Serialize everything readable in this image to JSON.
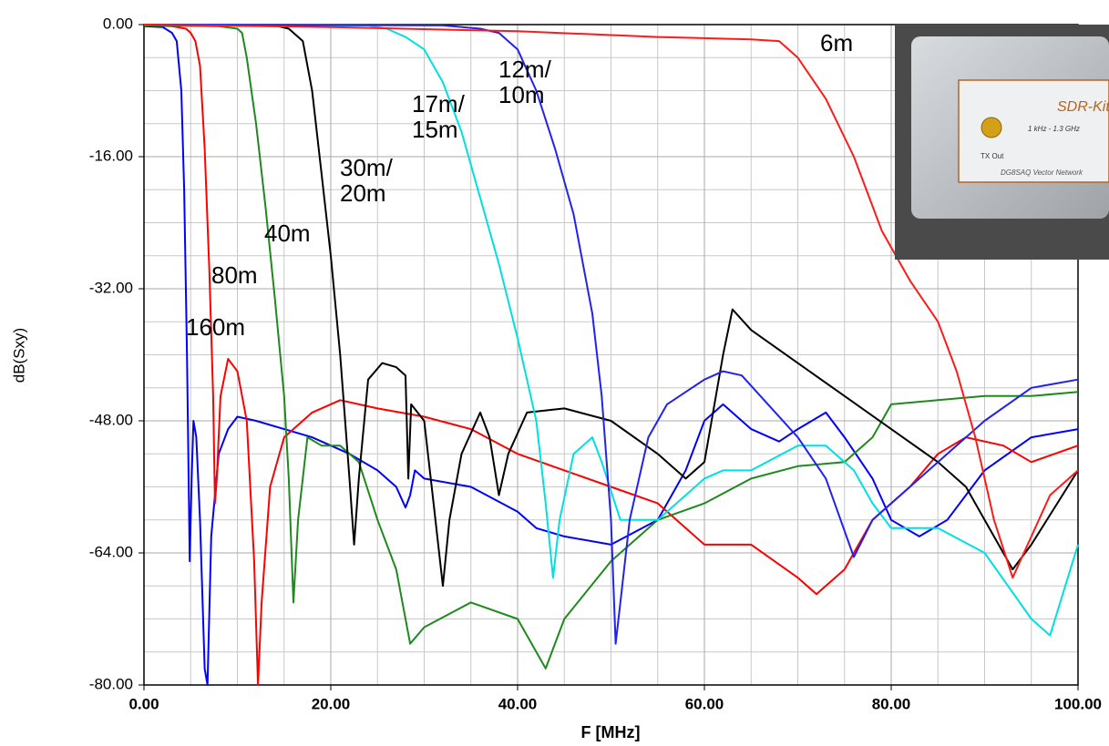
{
  "chart_data": {
    "type": "line",
    "xlabel": "F [MHz]",
    "ylabel": "dB(Sxy)",
    "xlim": [
      0,
      100
    ],
    "ylim": [
      -80,
      0
    ],
    "xticks": [
      {
        "value": 0,
        "label": "0.00"
      },
      {
        "value": 20,
        "label": "20.00"
      },
      {
        "value": 40,
        "label": "40.00"
      },
      {
        "value": 60,
        "label": "60.00"
      },
      {
        "value": 80,
        "label": "80.00"
      },
      {
        "value": 100,
        "label": "100.00"
      }
    ],
    "yticks": [
      {
        "value": 0,
        "label": "0.00"
      },
      {
        "value": -16,
        "label": "-16.00"
      },
      {
        "value": -32,
        "label": "-32.00"
      },
      {
        "value": -48,
        "label": "-48.00"
      },
      {
        "value": -64,
        "label": "-64.00"
      },
      {
        "value": -80,
        "label": "-80.00"
      }
    ],
    "x_minor_ticks": [
      5,
      10,
      15,
      25,
      30,
      35,
      45,
      50,
      55,
      65,
      70,
      75,
      85,
      90,
      95
    ],
    "y_minor_ticks": [
      -4,
      -8,
      -12,
      -20,
      -24,
      -28,
      -36,
      -40,
      -44,
      -52,
      -56,
      -60,
      -68,
      -72,
      -76
    ],
    "grid": true,
    "series": [
      {
        "name": "160m",
        "color": "#0000ff",
        "x": [
          0,
          2,
          3,
          3.5,
          4,
          4.3,
          4.6,
          4.9,
          5.1,
          5.3,
          5.6,
          6,
          6.5,
          6.8,
          7.2,
          8,
          9,
          10,
          12,
          15,
          18,
          22,
          25,
          27,
          28,
          28.5,
          29,
          30,
          35,
          40,
          42,
          45,
          50,
          55,
          58,
          60,
          62,
          65,
          68,
          70,
          73,
          75,
          78,
          80,
          83,
          86,
          90,
          95,
          100
        ],
        "values": [
          -0.2,
          -0.3,
          -1,
          -2,
          -8,
          -20,
          -40,
          -65,
          -55,
          -48,
          -50,
          -60,
          -78,
          -80,
          -62,
          -52,
          -49,
          -47.5,
          -48,
          -49,
          -50,
          -52,
          -54,
          -56,
          -58.5,
          -57,
          -54,
          -55,
          -56,
          -59,
          -61,
          -62,
          -63,
          -60,
          -54,
          -48,
          -46,
          -49,
          -50.5,
          -49,
          -47,
          -50,
          -55,
          -60,
          -62,
          -60,
          -54,
          -50,
          -49
        ]
      },
      {
        "name": "80m",
        "color": "#ff0000",
        "x": [
          0,
          3,
          4.5,
          5,
          5.5,
          6,
          6.5,
          7,
          7.4,
          7.6,
          7.8,
          8.2,
          9,
          10,
          11,
          11.8,
          12.2,
          12.6,
          13.5,
          15,
          18,
          21,
          25,
          30,
          35,
          40,
          45,
          50,
          55,
          58,
          60,
          65,
          70,
          72,
          75,
          78,
          82,
          85,
          88,
          92,
          95,
          100
        ],
        "values": [
          -0.1,
          -0.2,
          -0.5,
          -1,
          -2,
          -5,
          -15,
          -30,
          -45,
          -58,
          -55,
          -45,
          -40.5,
          -42,
          -48,
          -65,
          -80,
          -70,
          -56,
          -50,
          -47,
          -45.5,
          -46.5,
          -47.5,
          -49,
          -52,
          -54,
          -56,
          -58,
          -61,
          -63,
          -63,
          -67,
          -69,
          -66,
          -60,
          -56,
          -52,
          -50,
          -51,
          -53,
          -51
        ]
      },
      {
        "name": "40m",
        "color": "#1e8a1e",
        "x": [
          0,
          8,
          10,
          10.5,
          11,
          12,
          13,
          14,
          15,
          15.5,
          16,
          16.5,
          17.5,
          19,
          21,
          23,
          25,
          27,
          28.5,
          30,
          35,
          40,
          43,
          45,
          50,
          55,
          60,
          65,
          70,
          75,
          78,
          80,
          85,
          90,
          95,
          100
        ],
        "values": [
          -0.1,
          -0.2,
          -0.5,
          -1,
          -4,
          -12,
          -22,
          -33,
          -45,
          -55,
          -70,
          -60,
          -50,
          -51,
          -51,
          -53,
          -60,
          -66,
          -75,
          -73,
          -70,
          -72,
          -78,
          -72,
          -65,
          -60,
          -58,
          -55,
          -53.5,
          -53,
          -50,
          -46,
          -45.5,
          -45,
          -45,
          -44.5
        ]
      },
      {
        "name": "30m/ 20m",
        "color": "#000000",
        "x": [
          0,
          14,
          15.5,
          17,
          18,
          19,
          20,
          21,
          22,
          22.5,
          23,
          24,
          25.5,
          27,
          28,
          28.3,
          28.6,
          30,
          31,
          32,
          32.7,
          34,
          36,
          37,
          38,
          39,
          41,
          45,
          50,
          55,
          58,
          60,
          62,
          63,
          65,
          70,
          75,
          80,
          85,
          88,
          90,
          93,
          95,
          100
        ],
        "values": [
          0,
          -0.1,
          -0.5,
          -2,
          -8,
          -18,
          -28,
          -40,
          -55,
          -63,
          -55,
          -43,
          -41,
          -41.5,
          -42.5,
          -55,
          -46,
          -48,
          -58,
          -68,
          -60,
          -52,
          -47,
          -50,
          -57,
          -52,
          -47,
          -46.5,
          -48,
          -52,
          -55,
          -53,
          -40,
          -34.5,
          -37,
          -41,
          -45,
          -49,
          -53,
          -56,
          -60,
          -66,
          -63,
          -54
        ]
      },
      {
        "name": "17m/ 15m",
        "color": "#00e0e0",
        "x": [
          0,
          24,
          26,
          28,
          30,
          32,
          34,
          36,
          38,
          40,
          42,
          43,
          43.8,
          44.5,
          46,
          48,
          49,
          51,
          55,
          58,
          60,
          62,
          65,
          70,
          73,
          76,
          78,
          80,
          85,
          90,
          95,
          97,
          100
        ],
        "values": [
          0,
          -0.1,
          -0.5,
          -1.5,
          -3,
          -7,
          -13,
          -21,
          -29,
          -38,
          -48,
          -58,
          -67,
          -60,
          -52,
          -50,
          -53,
          -60,
          -60,
          -57,
          -55,
          -54,
          -54,
          -51,
          -51,
          -54,
          -58,
          -61,
          -61,
          -64,
          -72,
          -74,
          -63
        ]
      },
      {
        "name": "12m/ 10m",
        "color": "#2222ee",
        "x": [
          0,
          32,
          36,
          38,
          40,
          42,
          44,
          46,
          48,
          49,
          50,
          50.5,
          51,
          52,
          54,
          56,
          60,
          62,
          64,
          66,
          70,
          73,
          76,
          78,
          82,
          86,
          90,
          95,
          100
        ],
        "values": [
          0,
          -0.1,
          -0.5,
          -1,
          -3,
          -8,
          -15,
          -23,
          -35,
          -45,
          -60,
          -75,
          -70,
          -60,
          -50,
          -46,
          -43,
          -42,
          -42.5,
          -45,
          -50,
          -55,
          -64.5,
          -60,
          -56,
          -52,
          -48,
          -44,
          -43
        ]
      },
      {
        "name": "6m",
        "color": "#ff1a1a",
        "x": [
          0,
          20,
          40,
          55,
          65,
          68,
          70,
          73,
          76,
          79,
          82,
          85,
          87,
          89,
          91,
          93,
          95,
          97,
          100
        ],
        "values": [
          0,
          -0.3,
          -0.8,
          -1.5,
          -1.8,
          -2,
          -4,
          -9,
          -16,
          -25,
          -31,
          -36,
          -42,
          -50,
          -60,
          -67,
          -62,
          -57,
          -54
        ]
      }
    ],
    "inset": {
      "brand": "SDR-Kits",
      "port": "TX Out",
      "range": "1 kHz - 1.3 GHz",
      "maker": "DG8SAQ Vector Network"
    }
  }
}
